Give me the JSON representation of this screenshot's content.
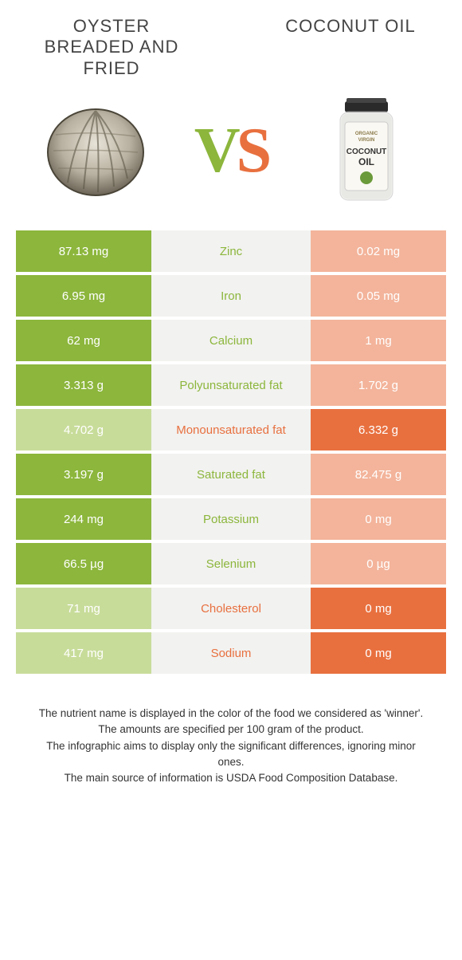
{
  "titles": {
    "left": "Oyster breaded and fried",
    "right": "Coconut oil"
  },
  "vs": {
    "v": "V",
    "s": "S"
  },
  "colors": {
    "green": "#8cb63c",
    "green_light": "#c8dc9a",
    "orange": "#e8703f",
    "orange_light": "#f3b49b",
    "mid_bg": "#f2f2f0"
  },
  "rows": [
    {
      "left": "87.13 mg",
      "name": "Zinc",
      "right": "0.02 mg",
      "winner": "left"
    },
    {
      "left": "6.95 mg",
      "name": "Iron",
      "right": "0.05 mg",
      "winner": "left"
    },
    {
      "left": "62 mg",
      "name": "Calcium",
      "right": "1 mg",
      "winner": "left"
    },
    {
      "left": "3.313 g",
      "name": "Polyunsaturated fat",
      "right": "1.702 g",
      "winner": "left"
    },
    {
      "left": "4.702 g",
      "name": "Monounsaturated fat",
      "right": "6.332 g",
      "winner": "right"
    },
    {
      "left": "3.197 g",
      "name": "Saturated fat",
      "right": "82.475 g",
      "winner": "left"
    },
    {
      "left": "244 mg",
      "name": "Potassium",
      "right": "0 mg",
      "winner": "left"
    },
    {
      "left": "66.5 µg",
      "name": "Selenium",
      "right": "0 µg",
      "winner": "left"
    },
    {
      "left": "71 mg",
      "name": "Cholesterol",
      "right": "0 mg",
      "winner": "right"
    },
    {
      "left": "417 mg",
      "name": "Sodium",
      "right": "0 mg",
      "winner": "right"
    }
  ],
  "footer": {
    "l1": "The nutrient name is displayed in the color of the food we considered as 'winner'.",
    "l2": "The amounts are specified per 100 gram of the product.",
    "l3": "The infographic aims to display only the significant differences, ignoring minor ones.",
    "l4": "The main source of information is USDA Food Composition Database."
  },
  "jar_label": {
    "line1": "ORGANIC",
    "line2": "VIRGIN",
    "line3": "COCONUT",
    "line4": "OIL"
  }
}
